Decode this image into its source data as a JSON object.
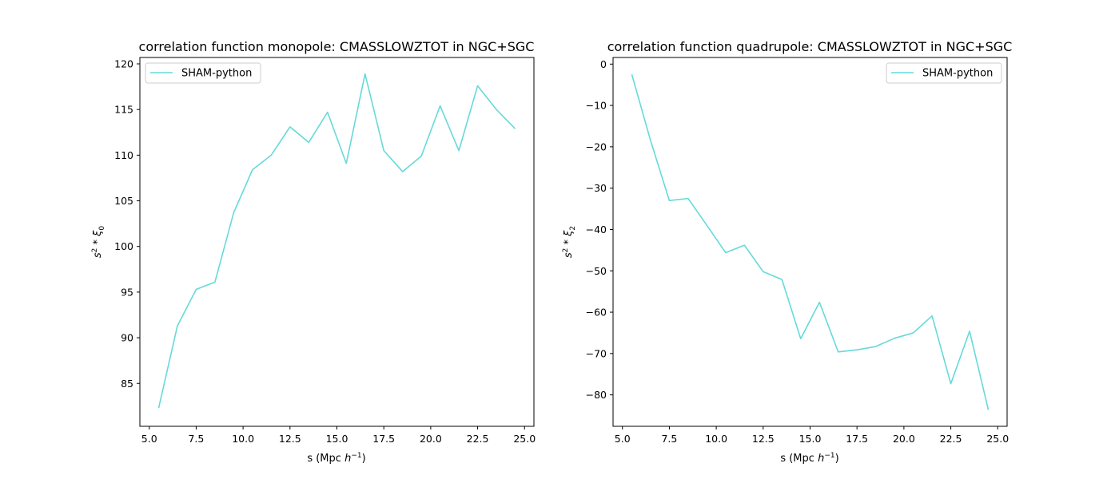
{
  "chart_data": [
    {
      "type": "line",
      "title": "correlation function monopole: CMASSLOWZTOT in NGC+SGC",
      "xlabel": "s (Mpc h⁻¹)",
      "ylabel": "s² * ξ₀",
      "xlim": [
        4.5,
        25.5
      ],
      "ylim": [
        80.3,
        120.7
      ],
      "xticks": [
        5.0,
        7.5,
        10.0,
        12.5,
        15.0,
        17.5,
        20.0,
        22.5,
        25.0
      ],
      "xtick_labels": [
        "5.0",
        "7.5",
        "10.0",
        "12.5",
        "15.0",
        "17.5",
        "20.0",
        "22.5",
        "25.0"
      ],
      "yticks": [
        85,
        90,
        95,
        100,
        105,
        110,
        115,
        120
      ],
      "ytick_labels": [
        "85",
        "90",
        "95",
        "100",
        "105",
        "110",
        "115",
        "120"
      ],
      "legend": "top-left",
      "grid": false,
      "series": [
        {
          "name": "SHAM-python",
          "color": "#66d9d9",
          "x": [
            5.5,
            6.5,
            7.5,
            8.5,
            9.5,
            10.5,
            11.5,
            12.5,
            13.5,
            14.5,
            15.5,
            16.5,
            17.5,
            18.5,
            19.5,
            20.5,
            21.5,
            22.5,
            23.5,
            24.5
          ],
          "y": [
            82.3,
            91.3,
            95.3,
            96.1,
            103.7,
            108.4,
            110.0,
            113.1,
            111.4,
            114.7,
            109.1,
            118.9,
            110.5,
            108.2,
            109.9,
            115.4,
            110.5,
            117.6,
            115.0,
            112.9
          ]
        }
      ]
    },
    {
      "type": "line",
      "title": "correlation function quadrupole: CMASSLOWZTOT in NGC+SGC",
      "xlabel": "s (Mpc h⁻¹)",
      "ylabel": "s² * ξ₂",
      "xlim": [
        4.5,
        25.5
      ],
      "ylim": [
        -87.6,
        1.6
      ],
      "xticks": [
        5.0,
        7.5,
        10.0,
        12.5,
        15.0,
        17.5,
        20.0,
        22.5,
        25.0
      ],
      "xtick_labels": [
        "5.0",
        "7.5",
        "10.0",
        "12.5",
        "15.0",
        "17.5",
        "20.0",
        "22.5",
        "25.0"
      ],
      "yticks": [
        0,
        -10,
        -20,
        -30,
        -40,
        -50,
        -60,
        -70,
        -80
      ],
      "ytick_labels": [
        "0",
        "−10",
        "−20",
        "−30",
        "−40",
        "−50",
        "−60",
        "−70",
        "−80"
      ],
      "legend": "top-right",
      "grid": false,
      "series": [
        {
          "name": "SHAM-python",
          "color": "#66d9d9",
          "x": [
            5.5,
            6.5,
            7.5,
            8.5,
            9.5,
            10.5,
            11.5,
            12.5,
            13.5,
            14.5,
            15.5,
            16.5,
            17.5,
            18.5,
            19.5,
            20.5,
            21.5,
            22.5,
            23.5,
            24.5
          ],
          "y": [
            -2.5,
            -18.5,
            -33.0,
            -32.5,
            -39.0,
            -45.6,
            -43.8,
            -50.2,
            -52.1,
            -66.4,
            -57.6,
            -69.6,
            -69.1,
            -68.3,
            -66.3,
            -65.0,
            -60.9,
            -77.3,
            -64.6,
            -83.6
          ]
        }
      ]
    }
  ]
}
